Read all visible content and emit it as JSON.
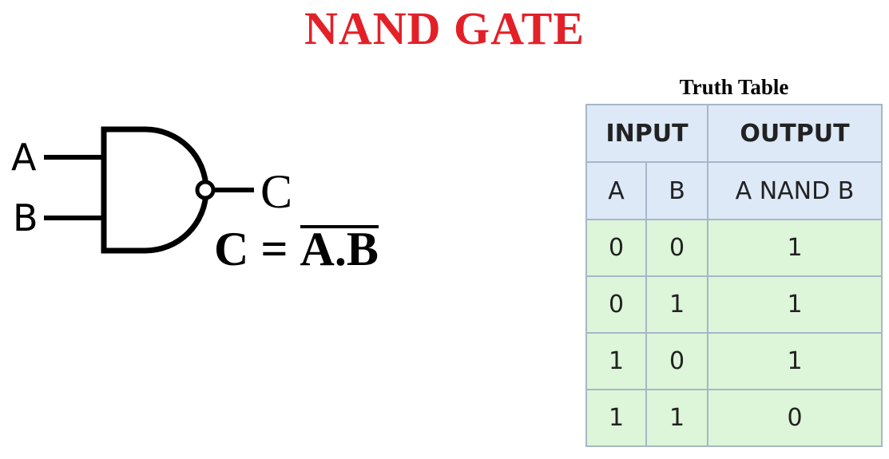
{
  "title": {
    "text": "NAND GATE",
    "color": "#e32028"
  },
  "gate": {
    "input_a_label": "A",
    "input_b_label": "B",
    "output_label": "C",
    "formula_lhs": "C = ",
    "formula_rhs": "A.B"
  },
  "truth_table": {
    "caption": "Truth Table",
    "group_headers": [
      "INPUT",
      "OUTPUT"
    ],
    "column_headers": [
      "A",
      "B",
      "A NAND B"
    ],
    "rows": [
      [
        "0",
        "0",
        "1"
      ],
      [
        "0",
        "1",
        "1"
      ],
      [
        "1",
        "0",
        "1"
      ],
      [
        "1",
        "1",
        "0"
      ]
    ],
    "colors": {
      "header_bg": "#dde9f7",
      "row_bg": "#ddf5d8",
      "border": "#a7b6c9"
    }
  }
}
